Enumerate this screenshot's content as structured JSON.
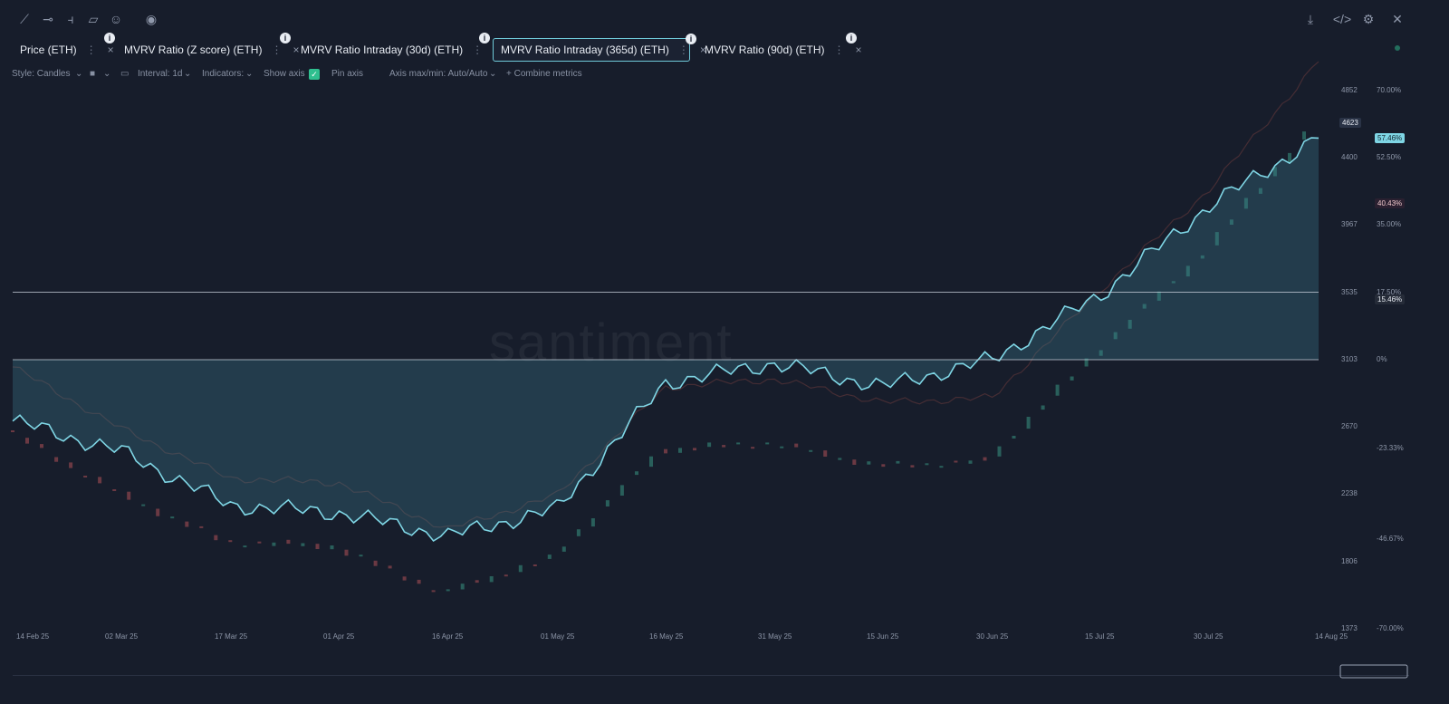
{
  "toolbar_icons": [
    "trend-line-icon",
    "horizontal-line-icon",
    "vertical-line-icon",
    "note-icon",
    "emoji-icon",
    "eye-icon"
  ],
  "right_icons": [
    "download-icon",
    "code-icon",
    "settings-icon",
    "close-icon"
  ],
  "tabs": [
    {
      "label": "Price (ETH)",
      "active": false
    },
    {
      "label": "MVRV Ratio (Z score) (ETH)",
      "active": false
    },
    {
      "label": "MVRV Ratio Intraday (30d) (ETH)",
      "active": false
    },
    {
      "label": "MVRV Ratio Intraday (365d) (ETH)",
      "active": true
    },
    {
      "label": "MVRV Ratio (90d) (ETH)",
      "active": false
    }
  ],
  "options": {
    "style": "Style: Candles",
    "interval": "Interval: 1d",
    "indicators": "Indicators:",
    "show_axis": "Show axis",
    "pin_axis": "Pin axis",
    "axis_maxmin": "Axis max/min: Auto/Auto",
    "combine": "+ Combine metrics"
  },
  "price_axis": [
    "4852",
    "4623",
    "4400",
    "3967",
    "3535",
    "3103",
    "2670",
    "2238",
    "1806",
    "1373"
  ],
  "pct_axis": [
    "70.00%",
    "52.50%",
    "35.00%",
    "17.50%",
    "0%",
    "-23.33%",
    "-46.67%",
    "-70.00%"
  ],
  "price_pill": "4623",
  "pct_pill_main": "57.46%",
  "pct_pill_red": "40.43%",
  "pct_pill_low": "15.46%",
  "x_labels": [
    "14 Feb 25",
    "02 Mar 25",
    "17 Mar 25",
    "01 Apr 25",
    "16 Apr 25",
    "01 May 25",
    "16 May 25",
    "31 May 25",
    "15 Jun 25",
    "30 Jun 25",
    "15 Jul 25",
    "30 Jul 25",
    "14 Aug 25"
  ],
  "watermark": "santiment",
  "colors": {
    "mvrv": "#7fd6e5",
    "up": "#2d6b64",
    "down": "#7a3e48",
    "price_line": "#6b3a3c"
  },
  "chart_data": {
    "type": "line",
    "x": [
      "14 Feb 25",
      "02 Mar 25",
      "17 Mar 25",
      "01 Apr 25",
      "16 Apr 25",
      "01 May 25",
      "16 May 25",
      "31 May 25",
      "15 Jun 25",
      "30 Jun 25",
      "15 Jul 25",
      "30 Jul 25",
      "14 Aug 25"
    ],
    "series": [
      {
        "name": "MVRV Ratio Intraday (365d) (ETH)",
        "axis": "percent",
        "values": [
          -16,
          -24,
          -38,
          -40,
          -46,
          -39,
          -6,
          -1,
          -7,
          0,
          17,
          40,
          57.46
        ]
      },
      {
        "name": "Price (ETH)",
        "axis": "price",
        "values": [
          2650,
          2250,
          1930,
          1900,
          1600,
          1820,
          2520,
          2570,
          2420,
          2450,
          3150,
          3800,
          4623
        ]
      }
    ],
    "y_percent_range": [
      -70,
      70
    ],
    "y_price_range": [
      1373,
      4852
    ],
    "horizontal_lines_percent": [
      0,
      17.5
    ]
  }
}
